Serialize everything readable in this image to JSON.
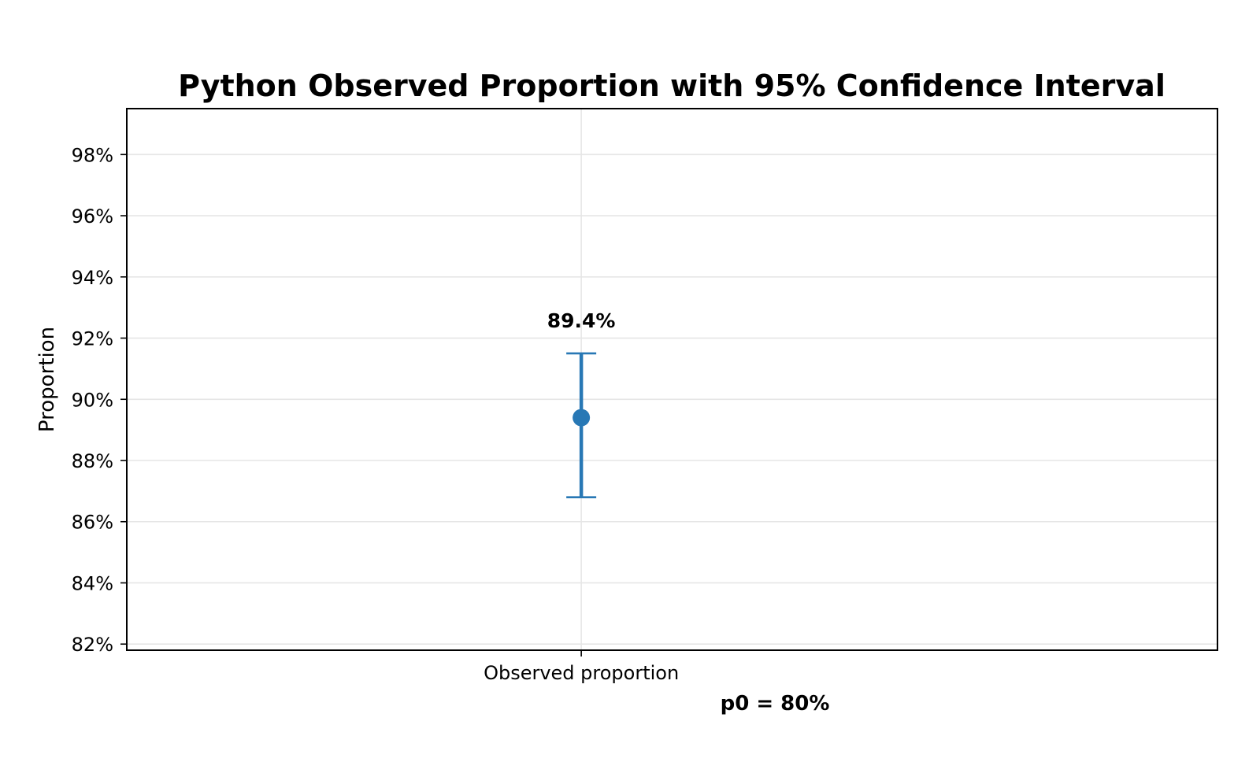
{
  "chart_data": {
    "type": "errorbar",
    "title": "Python Observed Proportion with 95% Confidence Interval",
    "xlabel": "",
    "ylabel": "Proportion",
    "categories": [
      "Observed proportion"
    ],
    "points": [
      {
        "category": "Observed proportion",
        "value": 0.894,
        "ci_lower": 0.868,
        "ci_upper": 0.915,
        "label": "89.4%"
      }
    ],
    "ylim": [
      0.818,
      0.995
    ],
    "yticks": [
      0.82,
      0.84,
      0.86,
      0.88,
      0.9,
      0.92,
      0.94,
      0.96,
      0.98
    ],
    "ytick_labels": [
      "82%",
      "84%",
      "86%",
      "88%",
      "90%",
      "92%",
      "94%",
      "96%",
      "98%"
    ],
    "grid": true,
    "annotation": "p0 = 80%",
    "colors": {
      "series": "#2878b5",
      "grid": "#e6e6e6",
      "axes": "#000000"
    }
  }
}
